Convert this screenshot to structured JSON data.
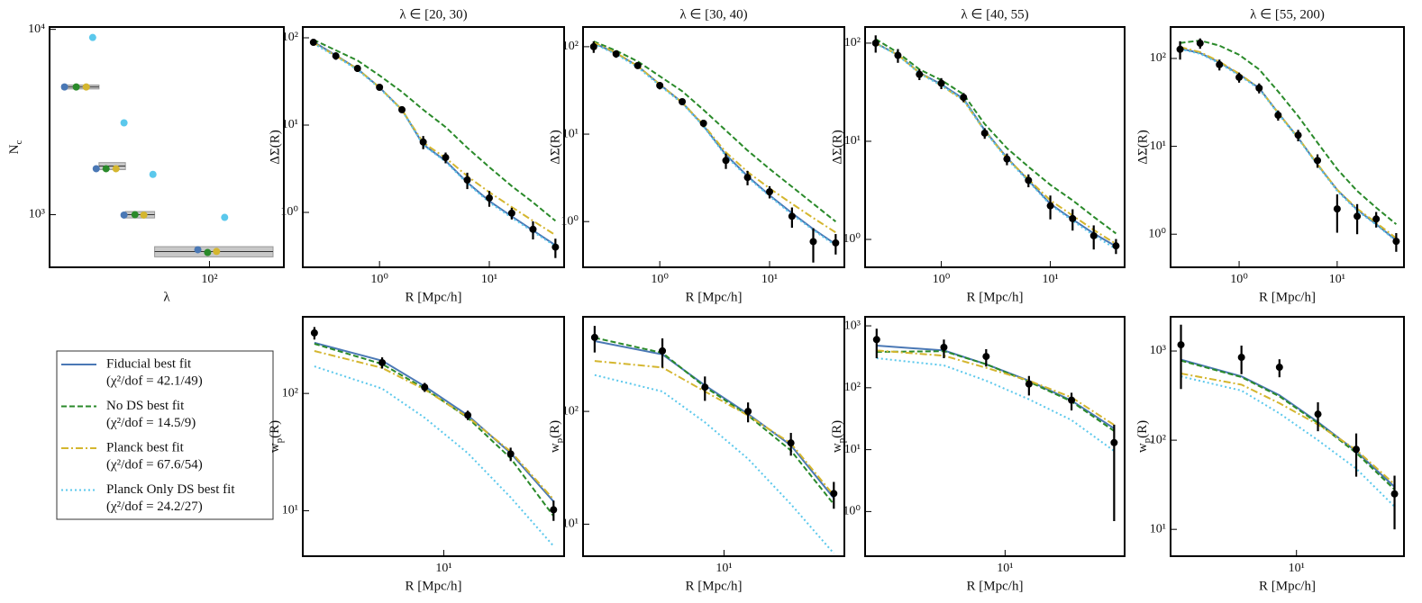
{
  "legend": {
    "entries": [
      {
        "name": "Fiducial best fit",
        "note": "(χ²/dof = 42.1/49)",
        "color": "#4a78b5",
        "style": "solid"
      },
      {
        "name": "No DS best fit",
        "note": "(χ²/dof = 14.5/9)",
        "color": "#2a8a2a",
        "style": "dashed"
      },
      {
        "name": "Planck best fit",
        "note": "(χ²/dof = 67.6/54)",
        "color": "#d4b62f",
        "style": "dashdot"
      },
      {
        "name": "Planck Only DS best fit",
        "note": "(χ²/dof = 24.2/27)",
        "color": "#5bc8ec",
        "style": "dotted"
      }
    ]
  },
  "chart_data": [
    {
      "type": "scatter",
      "xlabel": "λ",
      "ylabel": "N_c",
      "xscale": "log",
      "yscale": "log",
      "xlim": [
        17.5,
        225
      ],
      "ylim": [
        520,
        10300
      ],
      "xticks": [
        {
          "value": 100,
          "label": "10²"
        }
      ],
      "yticks": [
        {
          "value": 1000,
          "label": "10³"
        },
        {
          "value": 10000,
          "label": "10⁴"
        }
      ],
      "bins": [
        20,
        30,
        40,
        55,
        200
      ],
      "data": {
        "values": [
          4890,
          1830,
          1000,
          632
        ],
        "errors": [
          120,
          80,
          40,
          40
        ]
      },
      "series": [
        {
          "x": [
            20.6,
            29.1,
            39.4,
            88.1
          ],
          "values": [
            4890,
            1770,
            995,
            647
          ]
        },
        {
          "x": [
            23.4,
            32.4,
            44.4,
            98.0
          ],
          "values": [
            4890,
            1770,
            1000,
            625
          ]
        },
        {
          "x": [
            26.1,
            36.1,
            48.9,
            108
          ],
          "values": [
            4890,
            1770,
            995,
            633
          ]
        },
        {
          "x": [
            28.0,
            39.4,
            54.0,
            118
          ],
          "values": [
            9040,
            3130,
            1650,
            967
          ]
        }
      ]
    },
    {
      "type": "line",
      "title": "λ ∈ [20, 30)",
      "xlabel": "R [Mpc/h]",
      "ylabel": "ΔΣ(R)",
      "xscale": "log",
      "yscale": "log",
      "xlim": [
        0.2,
        48
      ],
      "ylim": [
        0.235,
        133
      ],
      "xticks": [
        {
          "value": 1,
          "label": "10⁰"
        },
        {
          "value": 10,
          "label": "10¹"
        }
      ],
      "yticks": [
        {
          "value": 1,
          "label": "10⁰"
        },
        {
          "value": 10,
          "label": "10¹"
        },
        {
          "value": 100,
          "label": "10²"
        }
      ],
      "x": [
        0.25,
        0.4,
        0.63,
        1.0,
        1.6,
        2.5,
        4.0,
        6.3,
        10,
        16,
        25,
        40
      ],
      "data": {
        "values": [
          88.8,
          62,
          44.6,
          27.1,
          15.0,
          6.4,
          4.25,
          2.35,
          1.46,
          0.98,
          0.64,
          0.4
        ],
        "errors": [
          7,
          6,
          4,
          2,
          1.2,
          1.1,
          0.6,
          0.5,
          0.3,
          0.15,
          0.15,
          0.1
        ]
      },
      "series": [
        {
          "values": [
            90,
            63,
            44,
            27,
            15,
            6.0,
            3.9,
            2.2,
            1.35,
            0.9,
            0.62,
            0.42
          ]
        },
        {
          "values": [
            95,
            72,
            55,
            37,
            24,
            15,
            9.5,
            5.5,
            3.3,
            2.0,
            1.3,
            0.8
          ]
        },
        {
          "values": [
            88,
            62,
            44,
            27,
            15,
            6.3,
            4.2,
            2.6,
            1.7,
            1.15,
            0.8,
            0.55
          ]
        },
        {
          "values": [
            86,
            61,
            43,
            26.5,
            14.8,
            5.9,
            3.8,
            2.15,
            1.3,
            0.87,
            0.6,
            0.41
          ]
        }
      ]
    },
    {
      "type": "line",
      "title": "λ ∈ [30, 40)",
      "xlabel": "R [Mpc/h]",
      "ylabel": "ΔΣ(R)",
      "xscale": "log",
      "yscale": "log",
      "xlim": [
        0.2,
        48
      ],
      "ylim": [
        0.3,
        168
      ],
      "xticks": [
        {
          "value": 1,
          "label": "10⁰"
        },
        {
          "value": 10,
          "label": "10¹"
        }
      ],
      "yticks": [
        {
          "value": 1,
          "label": "10⁰"
        },
        {
          "value": 10,
          "label": "10¹"
        },
        {
          "value": 100,
          "label": "10²"
        }
      ],
      "x": [
        0.25,
        0.4,
        0.63,
        1.0,
        1.6,
        2.5,
        4.0,
        6.3,
        10,
        16,
        25,
        40
      ],
      "data": {
        "values": [
          100,
          82.7,
          60.8,
          36,
          23.5,
          13.3,
          5.0,
          3.2,
          2.19,
          1.15,
          0.59,
          0.57
        ],
        "errors": [
          15,
          8,
          5,
          3.5,
          2,
          1.3,
          1.0,
          0.6,
          0.35,
          0.3,
          0.25,
          0.15
        ]
      },
      "series": [
        {
          "values": [
            110,
            84,
            60,
            37,
            23,
            12.5,
            5.8,
            3.3,
            2.0,
            1.25,
            0.82,
            0.55
          ]
        },
        {
          "values": [
            115,
            90,
            68,
            46,
            31,
            19,
            11,
            6.5,
            4.0,
            2.5,
            1.6,
            1.0
          ]
        },
        {
          "values": [
            112,
            85,
            60,
            37,
            23,
            12.8,
            6.2,
            3.7,
            2.4,
            1.6,
            1.1,
            0.75
          ]
        },
        {
          "values": [
            108,
            82,
            58,
            36,
            22.5,
            12.3,
            5.6,
            3.2,
            1.95,
            1.2,
            0.8,
            0.53
          ]
        }
      ]
    },
    {
      "type": "line",
      "title": "λ ∈ [40, 55)",
      "xlabel": "R [Mpc/h]",
      "ylabel": "ΔΣ(R)",
      "xscale": "log",
      "yscale": "log",
      "xlim": [
        0.2,
        48
      ],
      "ylim": [
        0.52,
        146
      ],
      "xticks": [
        {
          "value": 1,
          "label": "10⁰"
        },
        {
          "value": 10,
          "label": "10¹"
        }
      ],
      "yticks": [
        {
          "value": 1,
          "label": "10⁰"
        },
        {
          "value": 10,
          "label": "10¹"
        },
        {
          "value": 100,
          "label": "10²"
        }
      ],
      "x": [
        0.25,
        0.4,
        0.63,
        1.0,
        1.6,
        2.5,
        4.0,
        6.3,
        10,
        16,
        25,
        40
      ],
      "data": {
        "values": [
          100,
          75,
          48,
          39,
          28,
          12.1,
          6.6,
          4.0,
          2.2,
          1.63,
          1.09,
          0.86
        ],
        "errors": [
          20,
          12,
          6,
          5,
          3,
          1.5,
          0.9,
          0.6,
          0.6,
          0.4,
          0.3,
          0.15
        ]
      },
      "series": [
        {
          "values": [
            100,
            76,
            50,
            38,
            27,
            13,
            6.8,
            4.0,
            2.3,
            1.6,
            1.15,
            0.85
          ]
        },
        {
          "values": [
            110,
            80,
            54,
            42,
            30,
            15,
            8.5,
            5.5,
            3.6,
            2.5,
            1.7,
            1.15
          ]
        },
        {
          "values": [
            100,
            76,
            50,
            37,
            26,
            12.8,
            6.7,
            4.1,
            2.5,
            1.75,
            1.25,
            0.9
          ]
        },
        {
          "values": [
            99,
            75,
            49,
            37,
            26.5,
            12.7,
            6.6,
            3.9,
            2.25,
            1.55,
            1.1,
            0.8
          ]
        }
      ]
    },
    {
      "type": "line",
      "title": "λ ∈ [55, 200)",
      "xlabel": "R [Mpc/h]",
      "ylabel": "ΔΣ(R)",
      "xscale": "log",
      "yscale": "log",
      "xlim": [
        0.2,
        48
      ],
      "ylim": [
        0.42,
        228
      ],
      "xticks": [
        {
          "value": 1,
          "label": "10⁰"
        },
        {
          "value": 10,
          "label": "10¹"
        }
      ],
      "yticks": [
        {
          "value": 1,
          "label": "10⁰"
        },
        {
          "value": 10,
          "label": "10¹"
        },
        {
          "value": 100,
          "label": "10²"
        }
      ],
      "x": [
        0.25,
        0.4,
        0.63,
        1.0,
        1.6,
        2.5,
        4.0,
        6.3,
        10,
        16,
        25,
        40
      ],
      "data": {
        "values": [
          127,
          149,
          85,
          61,
          46,
          22.6,
          13.4,
          6.9,
          1.94,
          1.6,
          1.49,
          0.83
        ],
        "errors": [
          30,
          20,
          12,
          8,
          6,
          3,
          2,
          1.2,
          0.9,
          0.6,
          0.3,
          0.2
        ]
      },
      "series": [
        {
          "values": [
            130,
            115,
            90,
            66,
            46,
            24,
            12.5,
            6.2,
            3.2,
            1.9,
            1.3,
            0.85
          ]
        },
        {
          "values": [
            150,
            160,
            140,
            110,
            75,
            42,
            22,
            11,
            5.5,
            3.1,
            2.0,
            1.3
          ]
        },
        {
          "values": [
            135,
            118,
            92,
            67,
            46,
            24,
            12.5,
            6.3,
            3.2,
            1.95,
            1.35,
            0.9
          ]
        },
        {
          "values": [
            128,
            113,
            88,
            64,
            45,
            23.5,
            12.2,
            6.1,
            3.1,
            1.85,
            1.28,
            0.83
          ]
        }
      ]
    },
    {
      "type": "line",
      "xlabel": "R [Mpc/h]",
      "ylabel": "w_p(R)",
      "xscale": "log",
      "yscale": "log",
      "xlim": [
        1.45,
        52
      ],
      "ylim": [
        4.1,
        450
      ],
      "xticks": [
        {
          "value": 10,
          "label": "10¹"
        }
      ],
      "yticks": [
        {
          "value": 10,
          "label": "10¹"
        },
        {
          "value": 100,
          "label": "10²"
        }
      ],
      "x": [
        1.7,
        4.3,
        7.7,
        13.9,
        25,
        45
      ],
      "data": {
        "values": [
          328,
          183,
          113,
          65.3,
          30.5,
          10.2
        ],
        "errors": [
          40,
          20,
          10,
          6,
          4,
          2
        ]
      },
      "series": [
        {
          "values": [
            270,
            190,
            115,
            65,
            31,
            12
          ]
        },
        {
          "values": [
            265,
            178,
            110,
            62,
            28,
            9
          ]
        },
        {
          "values": [
            230,
            165,
            108,
            63,
            32,
            12.5
          ]
        },
        {
          "values": [
            170,
            110,
            62,
            31,
            13,
            5.0
          ]
        }
      ]
    },
    {
      "type": "line",
      "xlabel": "R [Mpc/h]",
      "ylabel": "w_p(R)",
      "xscale": "log",
      "yscale": "log",
      "xlim": [
        1.45,
        52
      ],
      "ylim": [
        5.2,
        690
      ],
      "xticks": [
        {
          "value": 10,
          "label": "10¹"
        }
      ],
      "yticks": [
        {
          "value": 10,
          "label": "10¹"
        },
        {
          "value": 100,
          "label": "10²"
        }
      ],
      "x": [
        1.7,
        4.3,
        7.7,
        13.9,
        25,
        45
      ],
      "data": {
        "values": [
          453,
          344,
          164,
          100,
          52.5,
          18.7
        ],
        "errors": [
          120,
          100,
          40,
          20,
          12,
          5
        ]
      },
      "series": [
        {
          "values": [
            420,
            320,
            170,
            95,
            50,
            17
          ]
        },
        {
          "values": [
            450,
            330,
            165,
            92,
            45,
            15
          ]
        },
        {
          "values": [
            280,
            245,
            150,
            92,
            52,
            18
          ]
        },
        {
          "values": [
            210,
            150,
            80,
            38,
            15,
            5.5
          ]
        }
      ]
    },
    {
      "type": "line",
      "xlabel": "R [Mpc/h]",
      "ylabel": "w_p(R)",
      "xscale": "log",
      "yscale": "log",
      "xlim": [
        1.45,
        52
      ],
      "ylim": [
        0.19,
        1400
      ],
      "xticks": [
        {
          "value": 10,
          "label": "10¹"
        }
      ],
      "yticks": [
        {
          "value": 1,
          "label": "10⁰"
        },
        {
          "value": 10,
          "label": "10¹"
        },
        {
          "value": 100,
          "label": "10²"
        },
        {
          "value": 1000,
          "label": "10³"
        }
      ],
      "x": [
        1.7,
        4.3,
        7.7,
        13.9,
        25,
        45
      ],
      "data": {
        "values": [
          600,
          450,
          320,
          115,
          63,
          13
        ],
        "errors": [
          300,
          150,
          100,
          40,
          20,
          12.3
        ]
      },
      "series": [
        {
          "values": [
            480,
            400,
            240,
            130,
            62,
            22
          ]
        },
        {
          "values": [
            380,
            390,
            240,
            125,
            60,
            20
          ]
        },
        {
          "values": [
            400,
            330,
            210,
            130,
            70,
            25
          ]
        },
        {
          "values": [
            300,
            230,
            130,
            65,
            30,
            9.5
          ]
        }
      ]
    },
    {
      "type": "line",
      "xlabel": "R [Mpc/h]",
      "ylabel": "w_p(R)",
      "xscale": "log",
      "yscale": "log",
      "xlim": [
        1.45,
        52
      ],
      "ylim": [
        5,
        2420
      ],
      "xticks": [
        {
          "value": 10,
          "label": "10¹"
        }
      ],
      "yticks": [
        {
          "value": 10,
          "label": "10¹"
        },
        {
          "value": 100,
          "label": "10²"
        },
        {
          "value": 1000,
          "label": "10³"
        }
      ],
      "x": [
        1.7,
        4.3,
        7.7,
        13.9,
        25,
        45
      ],
      "data": {
        "values": [
          1175,
          850,
          658,
          196,
          79,
          25
        ],
        "errors": [
          800,
          300,
          150,
          70,
          40,
          15
        ]
      },
      "series": [
        {
          "values": [
            800,
            520,
            320,
            160,
            75,
            30
          ]
        },
        {
          "values": [
            780,
            510,
            310,
            155,
            72,
            28
          ]
        },
        {
          "values": [
            560,
            420,
            260,
            150,
            78,
            32
          ]
        },
        {
          "values": [
            520,
            360,
            200,
            100,
            48,
            18
          ]
        }
      ]
    }
  ]
}
